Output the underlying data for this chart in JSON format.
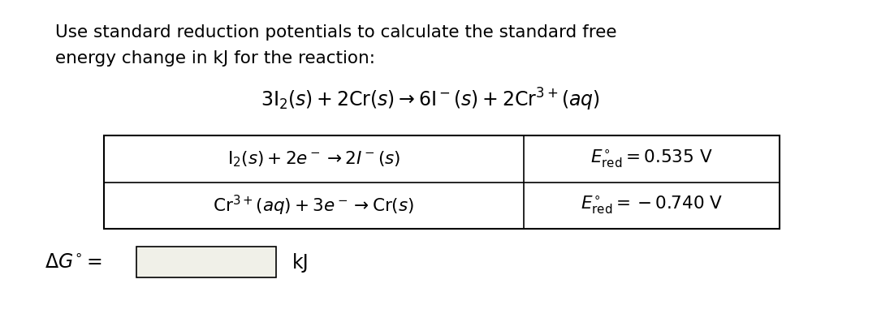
{
  "title_line1": "Use standard reduction potentials to calculate the standard free",
  "title_line2": "energy change in kJ for the reaction:",
  "overall_reaction": "$3\\mathrm{I_2}(s) + 2\\mathrm{Cr}(s) \\rightarrow 6\\mathrm{I}^-(s) + 2\\mathrm{Cr}^{3+}(aq)$",
  "row1_reaction": "$\\mathrm{I_2}(s) + 2e^- \\rightarrow 2I^-(s)$",
  "row1_potential": "$E^{\\circ}_{\\mathrm{red}} = 0.535\\ \\mathrm{V}$",
  "row2_reaction": "$\\mathrm{Cr}^{3+}(aq) + 3e^- \\rightarrow \\mathrm{Cr}(s)$",
  "row2_potential": "$E^{\\circ}_{\\mathrm{red}} = -0.740\\ \\mathrm{V}$",
  "delta_g_label": "$\\Delta G^{\\circ} =$",
  "delta_g_unit": "kJ",
  "bg_color": "#ffffff",
  "text_color": "#000000",
  "table_border_color": "#000000",
  "input_box_color": "#f0f0e8",
  "title_fontsize": 15.5,
  "reaction_fontsize": 17,
  "table_fontsize": 15.5,
  "delta_g_fontsize": 17
}
